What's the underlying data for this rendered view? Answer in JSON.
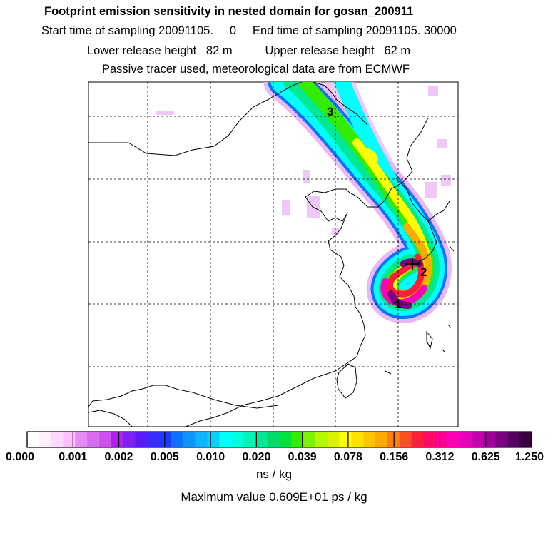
{
  "header": {
    "title": "Footprint emission sensitivity in nested domain for gosan_200911",
    "sampling_line": "Start time of sampling 20091105.     0     End time of sampling 20091105. 30000",
    "release_line": "Lower release height   82 m          Upper release height   62 m",
    "tracer_line": "Passive tracer used, meteorological data are from ECMWF"
  },
  "map": {
    "markers": [
      "1",
      "2",
      "3"
    ]
  },
  "colorbar": {
    "tick_labels": [
      "0.000",
      "0.001",
      "0.002",
      "0.005",
      "0.010",
      "0.020",
      "0.039",
      "0.078",
      "0.156",
      "0.312",
      "0.625",
      "1.250"
    ],
    "colors": [
      "#ffffff",
      "#ffeeff",
      "#ffd7ff",
      "#ffbfff",
      "#e48bf4",
      "#d86bf0",
      "#cf4ff2",
      "#b21fee",
      "#7f1ff8",
      "#5a1bfb",
      "#3a2bff",
      "#1a3cff",
      "#0f6fff",
      "#1294ff",
      "#10b5ff",
      "#09d0ff",
      "#00ffff",
      "#00ffe0",
      "#00f4b8",
      "#00e894",
      "#00da6a",
      "#00e23a",
      "#33ec00",
      "#7cf200",
      "#b4f800",
      "#d8f400",
      "#ffff00",
      "#ffe200",
      "#ffc600",
      "#ffaa00",
      "#ff7f10",
      "#ff4f26",
      "#ff1f38",
      "#ff0a66",
      "#ff0094",
      "#ff00b8",
      "#e800c0",
      "#c400b0",
      "#a0009c",
      "#7a0080",
      "#540060",
      "#3a0040"
    ]
  },
  "footer": {
    "units": "ns / kg",
    "max_value": "Maximum value  0.609E+01 ps / kg"
  }
}
